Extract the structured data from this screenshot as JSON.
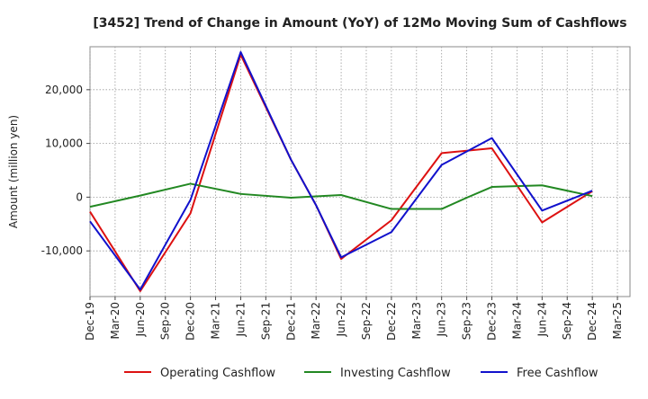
{
  "chart_data": {
    "type": "line",
    "title": "[3452]  Trend of Change in Amount (YoY) of 12Mo Moving Sum of Cashflows",
    "xlabel": "",
    "ylabel": "Amount (million yen)",
    "ylim": [
      -18500,
      28000
    ],
    "yticks": [
      -10000,
      0,
      10000,
      20000
    ],
    "ytick_labels": [
      "-10,000",
      "0",
      "10,000",
      "20,000"
    ],
    "categories": [
      "Dec-19",
      "Mar-20",
      "Jun-20",
      "Sep-20",
      "Dec-20",
      "Mar-21",
      "Jun-21",
      "Sep-21",
      "Dec-21",
      "Mar-22",
      "Jun-22",
      "Sep-22",
      "Dec-22",
      "Mar-23",
      "Jun-23",
      "Sep-23",
      "Dec-23",
      "Mar-24",
      "Jun-24",
      "Sep-24",
      "Dec-24",
      "Mar-25"
    ],
    "grid": true,
    "legend_position": "bottom",
    "series": [
      {
        "name": "Operating Cashflow",
        "color": "#dd1111",
        "points": [
          [
            0,
            -2700
          ],
          [
            2,
            -17500
          ],
          [
            4,
            -3000
          ],
          [
            6,
            26500
          ],
          [
            8,
            7000
          ],
          [
            9,
            -1500
          ],
          [
            10,
            -11500
          ],
          [
            12,
            -4300
          ],
          [
            14,
            8200
          ],
          [
            16,
            9100
          ],
          [
            18,
            -4700
          ],
          [
            20,
            1100
          ]
        ]
      },
      {
        "name": "Investing Cashflow",
        "color": "#228822",
        "points": [
          [
            0,
            -1800
          ],
          [
            2,
            300
          ],
          [
            4,
            2500
          ],
          [
            6,
            600
          ],
          [
            8,
            -100
          ],
          [
            10,
            400
          ],
          [
            12,
            -2200
          ],
          [
            14,
            -2200
          ],
          [
            15,
            -100
          ],
          [
            16,
            1900
          ],
          [
            18,
            2200
          ],
          [
            20,
            200
          ]
        ]
      },
      {
        "name": "Free Cashflow",
        "color": "#1111cc",
        "points": [
          [
            0,
            -4500
          ],
          [
            2,
            -17200
          ],
          [
            4,
            -500
          ],
          [
            6,
            27000
          ],
          [
            8,
            7000
          ],
          [
            9,
            -1500
          ],
          [
            10,
            -11200
          ],
          [
            12,
            -6500
          ],
          [
            14,
            6000
          ],
          [
            16,
            11000
          ],
          [
            18,
            -2500
          ],
          [
            20,
            1200
          ]
        ]
      }
    ]
  }
}
